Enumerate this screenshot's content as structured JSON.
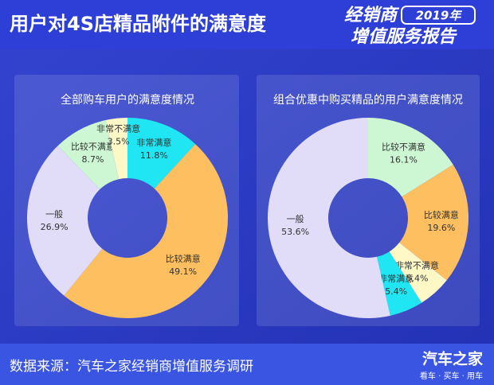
{
  "header": {
    "title": "用户对4S店精品附件的满意度",
    "badge": [
      "经销商",
      "2019年",
      "增值服务报告"
    ]
  },
  "chart_data": [
    {
      "type": "pie",
      "title": "全部购车用户的满意度情况",
      "categories": [
        "非常满意",
        "比较满意",
        "一般",
        "比较不满意",
        "非常不满意"
      ],
      "values": [
        11.8,
        49.1,
        26.9,
        8.7,
        3.5
      ],
      "value_labels": [
        "11.8%",
        "49.1%",
        "26.9%",
        "8.7%",
        "3.5%"
      ],
      "colors": [
        "#1fe6f2",
        "#fdbf60",
        "#e1dcf8",
        "#cdf7d2",
        "#fdf8c6"
      ]
    },
    {
      "type": "pie",
      "title": "组合优惠中购买精品的用户满意度情况",
      "categories": [
        "比较不满意",
        "比较满意",
        "非常不满意",
        "非常满意",
        "一般"
      ],
      "values": [
        16.1,
        19.6,
        5.4,
        5.4,
        53.6
      ],
      "value_labels": [
        "16.1%",
        "19.6%",
        "5.4%",
        "5.4%",
        "53.6%"
      ],
      "colors": [
        "#cdf7d2",
        "#fdbf60",
        "#fdf8c6",
        "#1fe6f2",
        "#e1dcf8"
      ]
    }
  ],
  "footer": {
    "source": "数据来源：汽车之家经销商增值服务调研",
    "logo": "汽车之家",
    "slogan": "看车 · 买车 · 用车"
  }
}
